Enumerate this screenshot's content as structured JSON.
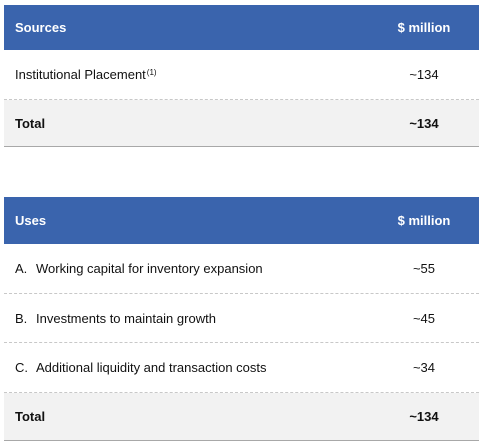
{
  "sources": {
    "header": {
      "label": "Sources",
      "value": "$ million"
    },
    "rows": [
      {
        "label": "Institutional Placement",
        "footnote": "(1)",
        "value": "~134"
      }
    ],
    "total": {
      "label": "Total",
      "value": "~134"
    }
  },
  "uses": {
    "header": {
      "label": "Uses",
      "value": "$ million"
    },
    "rows": [
      {
        "letter": "A.",
        "label": "Working capital for inventory expansion",
        "value": "~55"
      },
      {
        "letter": "B.",
        "label": "Investments to maintain growth",
        "value": "~45"
      },
      {
        "letter": "C.",
        "label": "Additional liquidity and transaction costs",
        "value": "~34"
      }
    ],
    "total": {
      "label": "Total",
      "value": "~134"
    }
  },
  "colors": {
    "header_bg": "#3a64ad",
    "total_bg": "#f2f2f2"
  }
}
